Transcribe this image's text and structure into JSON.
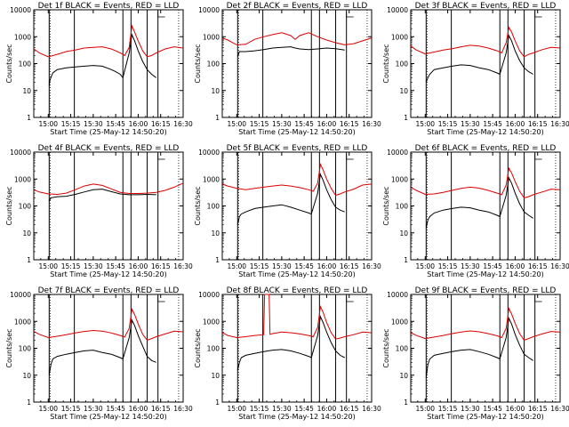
{
  "chart_data": {
    "type": "line",
    "layout": "3x3 grid",
    "xlabel": "Start Time (25-May-12 14:50:20)",
    "ylabel": "Counts/sec",
    "xlim": [
      14.8389,
      16.5
    ],
    "ylim": [
      1,
      10000
    ],
    "yscale": "log",
    "xticks": [
      "15:00",
      "15:15",
      "15:30",
      "15:45",
      "16:00",
      "16:15",
      "16:30"
    ],
    "yticks": [
      "1",
      "10",
      "100",
      "1000",
      "10000"
    ],
    "colors": {
      "black": "#000000",
      "red": "#dd0000"
    },
    "vertical_lines": [
      15.01,
      15.29,
      15.83,
      15.92,
      16.1,
      16.22
    ],
    "panels": [
      {
        "title": "Det 1f BLACK = Events, RED = LLD",
        "series": [
          {
            "color": "black",
            "x": [
              15.01,
              15.02,
              15.05,
              15.1,
              15.15,
              15.2,
              15.3,
              15.4,
              15.5,
              15.6,
              15.7,
              15.75,
              15.8,
              15.83,
              15.9,
              15.93,
              15.96,
              16.0,
              16.05,
              16.1,
              16.15,
              16.2
            ],
            "y": [
              15,
              25,
              45,
              60,
              65,
              70,
              75,
              80,
              85,
              80,
              60,
              50,
              40,
              30,
              250,
              1200,
              700,
              300,
              120,
              60,
              40,
              30
            ]
          },
          {
            "color": "red",
            "x": [
              14.84,
              14.9,
              15.0,
              15.1,
              15.2,
              15.3,
              15.4,
              15.5,
              15.6,
              15.7,
              15.75,
              15.8,
              15.85,
              15.9,
              15.93,
              15.96,
              16.0,
              16.05,
              16.1,
              16.15,
              16.2,
              16.3,
              16.4,
              16.5
            ],
            "y": [
              350,
              250,
              180,
              220,
              280,
              320,
              380,
              400,
              420,
              350,
              300,
              250,
              200,
              400,
              2500,
              1500,
              700,
              300,
              180,
              200,
              250,
              350,
              420,
              380
            ]
          }
        ]
      },
      {
        "title": "Det 2f BLACK = Events, RED = LLD",
        "series": [
          {
            "color": "black",
            "x": [
              15.01,
              15.03,
              15.1,
              15.2,
              15.3,
              15.4,
              15.5,
              15.6,
              15.65,
              15.7,
              15.8,
              15.9,
              16.0,
              16.1,
              16.2
            ],
            "y": [
              180,
              280,
              280,
              300,
              330,
              380,
              400,
              420,
              380,
              350,
              330,
              350,
              380,
              360,
              320
            ]
          },
          {
            "color": "red",
            "x": [
              14.84,
              14.9,
              15.0,
              15.1,
              15.2,
              15.3,
              15.4,
              15.5,
              15.6,
              15.65,
              15.7,
              15.8,
              15.9,
              16.0,
              16.1,
              16.2,
              16.3,
              16.4,
              16.5
            ],
            "y": [
              900,
              750,
              500,
              520,
              800,
              1000,
              1200,
              1400,
              1100,
              800,
              1100,
              1400,
              1000,
              750,
              600,
              500,
              550,
              700,
              900
            ]
          }
        ]
      },
      {
        "title": "Det 3f BLACK = Events, RED = LLD",
        "series": [
          {
            "color": "black",
            "x": [
              15.01,
              15.03,
              15.05,
              15.1,
              15.2,
              15.3,
              15.4,
              15.5,
              15.6,
              15.7,
              15.8,
              15.83,
              15.9,
              15.93,
              15.96,
              16.0,
              16.05,
              16.1,
              16.15,
              16.2
            ],
            "y": [
              20,
              30,
              40,
              60,
              70,
              80,
              90,
              85,
              70,
              60,
              45,
              40,
              250,
              1100,
              700,
              300,
              130,
              70,
              50,
              40
            ]
          },
          {
            "color": "red",
            "x": [
              14.84,
              14.9,
              15.0,
              15.1,
              15.2,
              15.3,
              15.4,
              15.5,
              15.6,
              15.7,
              15.8,
              15.85,
              15.9,
              15.93,
              15.96,
              16.0,
              16.05,
              16.1,
              16.15,
              16.2,
              16.3,
              16.4,
              16.5
            ],
            "y": [
              450,
              320,
              230,
              270,
              320,
              360,
              420,
              480,
              450,
              380,
              300,
              250,
              600,
              2200,
              1500,
              700,
              300,
              180,
              220,
              250,
              330,
              400,
              380
            ]
          }
        ]
      },
      {
        "title": "Det 4f BLACK = Events, RED = LLD",
        "series": [
          {
            "color": "black",
            "x": [
              15.01,
              15.03,
              15.1,
              15.2,
              15.3,
              15.4,
              15.5,
              15.6,
              15.7,
              15.8,
              15.9,
              16.0,
              16.1,
              16.2
            ],
            "y": [
              150,
              200,
              220,
              230,
              270,
              330,
              400,
              420,
              340,
              280,
              260,
              260,
              270,
              260
            ]
          },
          {
            "color": "red",
            "x": [
              14.84,
              14.9,
              15.0,
              15.1,
              15.2,
              15.3,
              15.4,
              15.5,
              15.6,
              15.7,
              15.8,
              15.9,
              16.0,
              16.1,
              16.2,
              16.3,
              16.4,
              16.5
            ],
            "y": [
              400,
              330,
              280,
              270,
              300,
              400,
              550,
              650,
              580,
              430,
              320,
              290,
              290,
              300,
              320,
              380,
              500,
              700
            ]
          }
        ]
      },
      {
        "title": "Det 5f BLACK = Events, RED = LLD",
        "series": [
          {
            "color": "black",
            "x": [
              15.01,
              15.03,
              15.05,
              15.1,
              15.2,
              15.3,
              15.4,
              15.5,
              15.6,
              15.7,
              15.8,
              15.83,
              15.9,
              15.93,
              15.96,
              16.0,
              16.05,
              16.1,
              16.15,
              16.2
            ],
            "y": [
              20,
              40,
              50,
              60,
              80,
              90,
              100,
              110,
              90,
              70,
              55,
              50,
              300,
              1500,
              900,
              400,
              170,
              90,
              70,
              60
            ]
          },
          {
            "color": "red",
            "x": [
              14.84,
              14.9,
              15.0,
              15.1,
              15.2,
              15.3,
              15.4,
              15.5,
              15.6,
              15.7,
              15.8,
              15.85,
              15.9,
              15.93,
              15.96,
              16.0,
              16.05,
              16.1,
              16.15,
              16.2,
              16.3,
              16.4,
              16.5
            ],
            "y": [
              650,
              550,
              450,
              400,
              450,
              500,
              550,
              600,
              550,
              480,
              400,
              350,
              700,
              3500,
              2200,
              1000,
              450,
              250,
              280,
              330,
              420,
              600,
              650
            ]
          }
        ]
      },
      {
        "title": "Det 6f BLACK = Events, RED = LLD",
        "series": [
          {
            "color": "black",
            "x": [
              15.01,
              15.03,
              15.05,
              15.1,
              15.2,
              15.3,
              15.4,
              15.5,
              15.6,
              15.7,
              15.8,
              15.83,
              15.9,
              15.93,
              15.96,
              16.0,
              16.05,
              16.1,
              16.15,
              16.2
            ],
            "y": [
              15,
              30,
              40,
              55,
              70,
              80,
              90,
              85,
              70,
              60,
              45,
              40,
              250,
              1100,
              700,
              300,
              120,
              60,
              45,
              35
            ]
          },
          {
            "color": "red",
            "x": [
              14.84,
              14.9,
              15.0,
              15.1,
              15.2,
              15.3,
              15.4,
              15.5,
              15.6,
              15.7,
              15.8,
              15.85,
              15.9,
              15.93,
              15.96,
              16.0,
              16.05,
              16.1,
              16.15,
              16.2,
              16.3,
              16.4,
              16.5
            ],
            "y": [
              500,
              380,
              270,
              280,
              320,
              380,
              450,
              500,
              460,
              380,
              300,
              260,
              600,
              2500,
              1700,
              800,
              350,
              200,
              220,
              260,
              330,
              420,
              400
            ]
          }
        ]
      },
      {
        "title": "Det 7f BLACK = Events, RED = LLD",
        "series": [
          {
            "color": "black",
            "x": [
              15.01,
              15.03,
              15.05,
              15.1,
              15.2,
              15.3,
              15.4,
              15.5,
              15.6,
              15.7,
              15.8,
              15.83,
              15.9,
              15.93,
              15.96,
              16.0,
              16.05,
              16.1,
              16.15,
              16.2
            ],
            "y": [
              10,
              25,
              40,
              50,
              60,
              70,
              80,
              85,
              70,
              60,
              45,
              40,
              250,
              1100,
              700,
              300,
              120,
              50,
              35,
              30
            ]
          },
          {
            "color": "red",
            "x": [
              14.84,
              14.9,
              15.0,
              15.1,
              15.2,
              15.3,
              15.4,
              15.5,
              15.6,
              15.7,
              15.8,
              15.85,
              15.9,
              15.93,
              15.96,
              16.0,
              16.05,
              16.1,
              16.15,
              16.2,
              16.3,
              16.4,
              16.5
            ],
            "y": [
              420,
              330,
              250,
              280,
              320,
              370,
              420,
              460,
              430,
              370,
              300,
              260,
              550,
              2800,
              1800,
              800,
              330,
              200,
              230,
              270,
              340,
              430,
              410
            ]
          }
        ]
      },
      {
        "title": "Det 8f BLACK = Events, RED = LLD",
        "series": [
          {
            "color": "black",
            "x": [
              15.01,
              15.03,
              15.05,
              15.1,
              15.2,
              15.3,
              15.4,
              15.5,
              15.6,
              15.7,
              15.8,
              15.83,
              15.9,
              15.93,
              15.96,
              16.0,
              16.05,
              16.1,
              16.15,
              16.2
            ],
            "y": [
              15,
              30,
              45,
              55,
              65,
              75,
              85,
              90,
              80,
              65,
              50,
              45,
              300,
              1500,
              900,
              400,
              160,
              80,
              55,
              45
            ]
          },
          {
            "color": "red",
            "x": [
              14.84,
              14.9,
              15.0,
              15.1,
              15.2,
              15.3,
              15.31,
              15.32,
              15.35,
              15.36,
              15.37,
              15.4,
              15.5,
              15.6,
              15.7,
              15.8,
              15.85,
              15.9,
              15.93,
              15.96,
              16.0,
              16.05,
              16.1,
              16.15,
              16.2,
              16.3,
              16.4,
              16.5
            ],
            "y": [
              380,
              300,
              250,
              270,
              300,
              320,
              10000,
              10000,
              10000,
              10000,
              330,
              350,
              400,
              380,
              340,
              300,
              270,
              600,
              3500,
              2200,
              900,
              380,
              220,
              240,
              270,
              320,
              400,
              380
            ]
          }
        ]
      },
      {
        "title": "Det 9f BLACK = Events, RED = LLD",
        "series": [
          {
            "color": "black",
            "x": [
              15.01,
              15.03,
              15.05,
              15.1,
              15.2,
              15.3,
              15.4,
              15.5,
              15.6,
              15.7,
              15.8,
              15.83,
              15.9,
              15.93,
              15.96,
              16.0,
              16.05,
              16.1,
              16.15,
              16.2
            ],
            "y": [
              8,
              25,
              40,
              55,
              65,
              75,
              85,
              90,
              75,
              60,
              45,
              40,
              250,
              1300,
              800,
              330,
              130,
              60,
              45,
              35
            ]
          },
          {
            "color": "red",
            "x": [
              14.84,
              14.9,
              15.0,
              15.1,
              15.2,
              15.3,
              15.4,
              15.5,
              15.6,
              15.7,
              15.8,
              15.85,
              15.9,
              15.93,
              15.96,
              16.0,
              16.05,
              16.1,
              16.15,
              16.2,
              16.3,
              16.4,
              16.5
            ],
            "y": [
              380,
              300,
              230,
              260,
              300,
              350,
              400,
              440,
              410,
              350,
              290,
              250,
              550,
              3000,
              1900,
              850,
              350,
              200,
              230,
              270,
              340,
              420,
              400
            ]
          }
        ]
      }
    ]
  }
}
